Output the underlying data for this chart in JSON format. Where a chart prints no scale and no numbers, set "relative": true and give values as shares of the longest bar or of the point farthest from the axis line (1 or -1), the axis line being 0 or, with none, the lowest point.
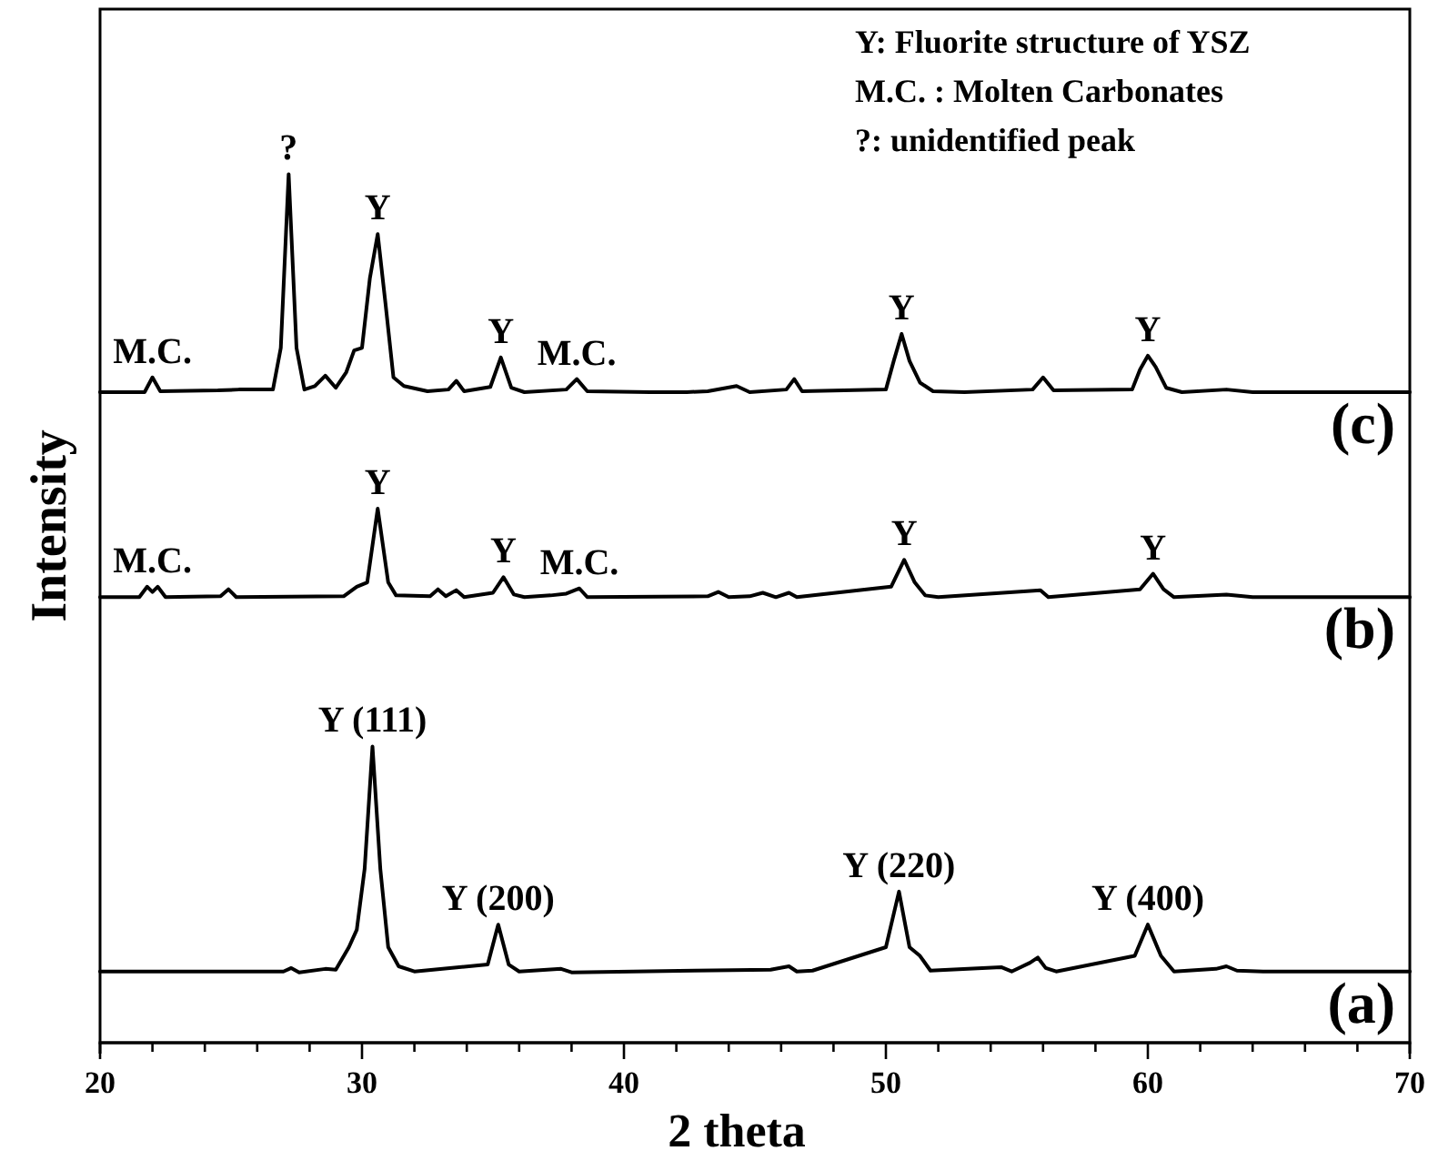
{
  "chart_data": {
    "type": "line",
    "xlabel": "2 theta",
    "ylabel": "Intensity",
    "relative": true,
    "xlim": [
      20,
      70
    ],
    "xticks": [
      20,
      {
        "value": 22,
        "label": null
      },
      {
        "value": 24,
        "label": null
      },
      {
        "value": 26,
        "label": null
      },
      {
        "value": 28,
        "label": null
      },
      30,
      {
        "value": 32,
        "label": null
      },
      {
        "value": 34,
        "label": null
      },
      {
        "value": 36,
        "label": null
      },
      {
        "value": 38,
        "label": null
      },
      40,
      {
        "value": 42,
        "label": null
      },
      {
        "value": 44,
        "label": null
      },
      {
        "value": 46,
        "label": null
      },
      {
        "value": 48,
        "label": null
      },
      50,
      {
        "value": 52,
        "label": null
      },
      {
        "value": 54,
        "label": null
      },
      {
        "value": 56,
        "label": null
      },
      {
        "value": 58,
        "label": null
      },
      60,
      {
        "value": 62,
        "label": null
      },
      {
        "value": 64,
        "label": null
      },
      {
        "value": 66,
        "label": null
      },
      {
        "value": 68,
        "label": null
      },
      70
    ],
    "tick_labels": "x",
    "marker": "none",
    "line_style": "solid",
    "series": [
      {
        "name": "(c)",
        "color": "#000000",
        "x": [
          20,
          21.7,
          22.0,
          22.3,
          24.5,
          25.3,
          26.6,
          26.9,
          27.2,
          27.5,
          27.8,
          28.2,
          28.6,
          29.0,
          29.4,
          29.7,
          30.0,
          30.3,
          30.6,
          30.9,
          31.2,
          31.6,
          32.5,
          33.3,
          33.6,
          33.9,
          34.9,
          35.3,
          35.7,
          36.2,
          37.8,
          38.2,
          38.6,
          41,
          42.4,
          43.2,
          44.3,
          44.8,
          46.2,
          46.5,
          46.8,
          50.0,
          50.3,
          50.6,
          50.9,
          51.3,
          51.8,
          53,
          55.6,
          56.0,
          56.4,
          59.4,
          59.7,
          60.0,
          60.3,
          60.7,
          61.3,
          63,
          64,
          70
        ],
        "values": [
          0.749,
          0.749,
          0.766,
          0.75,
          0.751,
          0.752,
          0.752,
          0.8,
          1.0,
          0.8,
          0.752,
          0.756,
          0.768,
          0.754,
          0.772,
          0.797,
          0.8,
          0.88,
          0.931,
          0.85,
          0.766,
          0.756,
          0.75,
          0.752,
          0.762,
          0.75,
          0.755,
          0.789,
          0.754,
          0.749,
          0.752,
          0.764,
          0.75,
          0.749,
          0.749,
          0.75,
          0.756,
          0.749,
          0.752,
          0.764,
          0.75,
          0.752,
          0.785,
          0.816,
          0.785,
          0.76,
          0.75,
          0.749,
          0.752,
          0.766,
          0.751,
          0.752,
          0.775,
          0.791,
          0.778,
          0.754,
          0.749,
          0.752,
          0.749,
          0.749
        ]
      },
      {
        "name": "(b)",
        "color": "#000000",
        "x": [
          20,
          21.5,
          21.8,
          22.0,
          22.2,
          22.5,
          24.6,
          24.9,
          25.2,
          29.3,
          29.8,
          30.2,
          30.6,
          31.0,
          31.3,
          32.6,
          32.9,
          33.2,
          33.6,
          33.9,
          35.0,
          35.4,
          35.8,
          36.2,
          37.2,
          37.8,
          38.3,
          38.6,
          43.2,
          43.6,
          44.0,
          44.8,
          45.3,
          45.8,
          46.3,
          46.6,
          50.2,
          50.7,
          51.1,
          51.5,
          52,
          55.9,
          56.2,
          59.7,
          60.2,
          60.6,
          61,
          63,
          64,
          70
        ],
        "values": [
          0.513,
          0.513,
          0.525,
          0.519,
          0.525,
          0.513,
          0.514,
          0.522,
          0.513,
          0.514,
          0.525,
          0.53,
          0.615,
          0.53,
          0.515,
          0.514,
          0.522,
          0.514,
          0.521,
          0.513,
          0.518,
          0.536,
          0.516,
          0.513,
          0.515,
          0.517,
          0.523,
          0.513,
          0.514,
          0.519,
          0.513,
          0.514,
          0.518,
          0.513,
          0.518,
          0.513,
          0.525,
          0.556,
          0.53,
          0.515,
          0.513,
          0.521,
          0.513,
          0.522,
          0.54,
          0.522,
          0.513,
          0.516,
          0.513,
          0.513
        ]
      },
      {
        "name": "(a)",
        "color": "#000000",
        "x": [
          20,
          27,
          27.3,
          27.6,
          28.6,
          29.0,
          29.5,
          29.8,
          30.1,
          30.4,
          30.7,
          31.0,
          31.4,
          32,
          34.8,
          35.2,
          35.6,
          36,
          37.6,
          38,
          42.7,
          45.6,
          46.3,
          46.6,
          47.2,
          50.0,
          50.5,
          50.9,
          51.3,
          51.7,
          54.4,
          54.8,
          55.5,
          55.8,
          56.1,
          56.5,
          59.5,
          60.0,
          60.5,
          61,
          62.6,
          63.0,
          63.4,
          64.4,
          70
        ],
        "values": [
          0.082,
          0.082,
          0.086,
          0.081,
          0.085,
          0.084,
          0.11,
          0.13,
          0.2,
          0.341,
          0.2,
          0.11,
          0.088,
          0.082,
          0.09,
          0.136,
          0.09,
          0.082,
          0.085,
          0.081,
          0.083,
          0.084,
          0.088,
          0.082,
          0.083,
          0.11,
          0.174,
          0.11,
          0.1,
          0.083,
          0.087,
          0.082,
          0.092,
          0.098,
          0.086,
          0.082,
          0.1,
          0.136,
          0.1,
          0.082,
          0.085,
          0.088,
          0.083,
          0.082,
          0.082
        ]
      }
    ],
    "annotations": [
      "Y: Fluorite structure of YSZ",
      "M.C. : Molten Carbonates",
      "?: unidentified peak",
      {
        "text": "M.C.",
        "x": 22,
        "y": 0.766
      },
      {
        "text": "?",
        "x": 27.2,
        "y": 1.0
      },
      {
        "text": "Y",
        "x": 30.6,
        "y": 0.931
      },
      {
        "text": "Y",
        "x": 35.3,
        "y": 0.789
      },
      {
        "text": "M.C.",
        "x": 38.2,
        "y": 0.764
      },
      {
        "text": "Y",
        "x": 50.6,
        "y": 0.816
      },
      {
        "text": "Y",
        "x": 60,
        "y": 0.791
      },
      {
        "text": "M.C.",
        "x": 22,
        "y": 0.525
      },
      {
        "text": "Y",
        "x": 30.6,
        "y": 0.615
      },
      {
        "text": "Y",
        "x": 35.4,
        "y": 0.536
      },
      {
        "text": "M.C.",
        "x": 38.3,
        "y": 0.523
      },
      {
        "text": "Y",
        "x": 50.7,
        "y": 0.556
      },
      {
        "text": "Y",
        "x": 60.2,
        "y": 0.54
      },
      {
        "text": "Y (111)",
        "x": 30.4,
        "y": 0.341
      },
      {
        "text": "Y (200)",
        "x": 35.2,
        "y": 0.136
      },
      {
        "text": "Y (220)",
        "x": 50.5,
        "y": 0.174
      },
      {
        "text": "Y (400)",
        "x": 60,
        "y": 0.136
      }
    ]
  }
}
